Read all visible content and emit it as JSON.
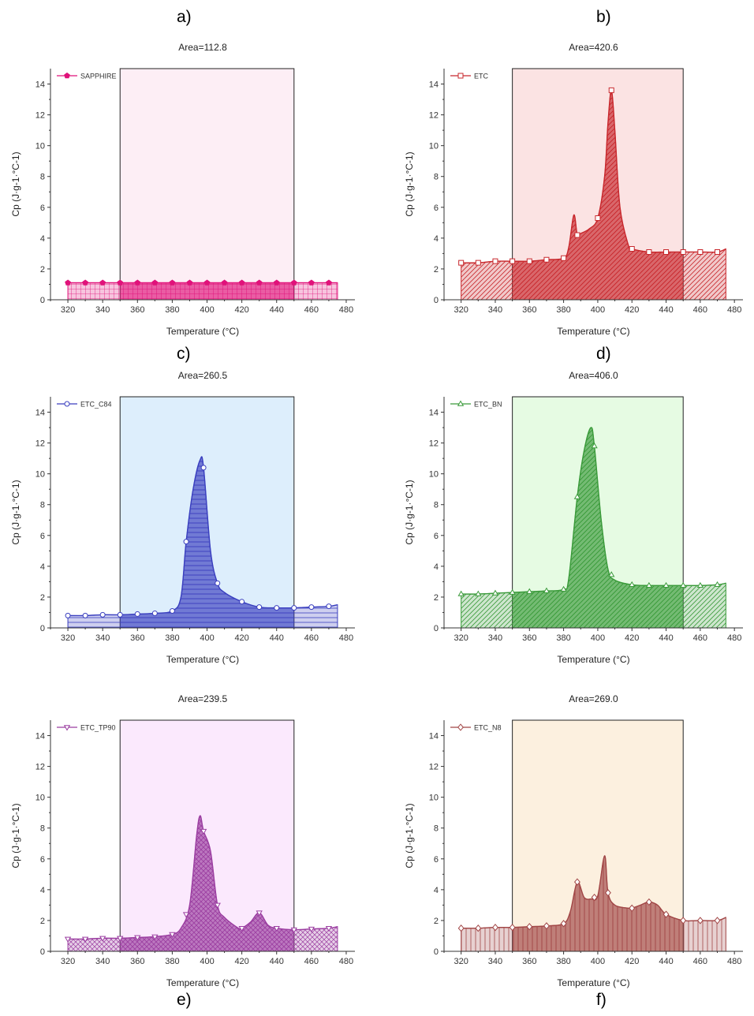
{
  "panel_letters": [
    "a)",
    "b)",
    "c)",
    "d)",
    "e)",
    "f)"
  ],
  "chart_data": [
    {
      "type": "area",
      "title": "Area=112.8",
      "xlabel": "Temperature (°C)",
      "ylabel": "Cp (J·g-1·°C-1)",
      "xlim": [
        310,
        485
      ],
      "ylim": [
        0,
        15
      ],
      "xticks": [
        320,
        340,
        360,
        380,
        400,
        420,
        440,
        460,
        480
      ],
      "yticks": [
        0,
        2,
        4,
        6,
        8,
        10,
        12,
        14
      ],
      "integration_range": [
        350,
        450
      ],
      "legend_position": "top-left",
      "marker": "pentagon",
      "color": "#e0127a",
      "shade": "#fdeef5",
      "series": [
        {
          "name": "SAPPHIRE",
          "x": [
            320,
            330,
            340,
            350,
            360,
            370,
            380,
            390,
            400,
            410,
            420,
            430,
            440,
            450,
            460,
            470,
            475
          ],
          "y": [
            1.1,
            1.1,
            1.1,
            1.1,
            1.1,
            1.1,
            1.1,
            1.1,
            1.1,
            1.1,
            1.1,
            1.1,
            1.1,
            1.1,
            1.1,
            1.1,
            1.1
          ],
          "marker_x": [
            320,
            330,
            340,
            350,
            360,
            370,
            380,
            390,
            400,
            410,
            420,
            430,
            440,
            450,
            460,
            470
          ]
        }
      ]
    },
    {
      "type": "area",
      "title": "Area=420.6",
      "xlabel": "Temperature (°C)",
      "ylabel": "Cp (J·g-1·°C-1)",
      "xlim": [
        310,
        485
      ],
      "ylim": [
        0,
        15
      ],
      "xticks": [
        320,
        340,
        360,
        380,
        400,
        420,
        440,
        460,
        480
      ],
      "yticks": [
        0,
        2,
        4,
        6,
        8,
        10,
        12,
        14
      ],
      "integration_range": [
        350,
        450
      ],
      "legend_position": "top-left",
      "marker": "square",
      "color": "#c8282d",
      "shade": "#fbe3e3",
      "series": [
        {
          "name": "ETC",
          "x": [
            320,
            330,
            340,
            350,
            360,
            370,
            380,
            383,
            386,
            388,
            390,
            395,
            400,
            404,
            406,
            408,
            410,
            413,
            418,
            420,
            430,
            440,
            450,
            460,
            470,
            475
          ],
          "y": [
            2.4,
            2.4,
            2.5,
            2.5,
            2.5,
            2.6,
            2.7,
            3.4,
            5.5,
            4.2,
            4.3,
            4.6,
            5.3,
            8.0,
            11.5,
            13.6,
            11.0,
            6.0,
            3.5,
            3.3,
            3.1,
            3.1,
            3.1,
            3.1,
            3.1,
            3.3
          ],
          "marker_x": [
            320,
            330,
            340,
            350,
            360,
            370,
            380,
            388,
            400,
            408,
            420,
            430,
            440,
            450,
            460,
            470
          ]
        }
      ]
    },
    {
      "type": "area",
      "title": "Area=260.5",
      "xlabel": "Temperature (°C)",
      "ylabel": "Cp (J·g-1·°C-1)",
      "xlim": [
        310,
        485
      ],
      "ylim": [
        0,
        15
      ],
      "xticks": [
        320,
        340,
        360,
        380,
        400,
        420,
        440,
        460,
        480
      ],
      "yticks": [
        0,
        2,
        4,
        6,
        8,
        10,
        12,
        14
      ],
      "integration_range": [
        350,
        450
      ],
      "legend_position": "top-left",
      "marker": "circle",
      "color": "#3a3fbf",
      "shade": "#ddeefc",
      "series": [
        {
          "name": "ETC_C84",
          "x": [
            320,
            330,
            340,
            350,
            360,
            370,
            380,
            385,
            388,
            392,
            396,
            398,
            402,
            406,
            410,
            420,
            430,
            440,
            450,
            460,
            470,
            475
          ],
          "y": [
            0.8,
            0.8,
            0.85,
            0.85,
            0.9,
            0.95,
            1.1,
            2.0,
            5.6,
            9.0,
            10.9,
            10.4,
            5.0,
            2.9,
            2.3,
            1.7,
            1.35,
            1.3,
            1.3,
            1.35,
            1.4,
            1.5
          ],
          "marker_x": [
            320,
            330,
            340,
            350,
            360,
            370,
            380,
            388,
            398,
            406,
            420,
            430,
            440,
            450,
            460,
            470
          ]
        }
      ]
    },
    {
      "type": "area",
      "title": "Area=406.0",
      "xlabel": "Temperature (°C)",
      "ylabel": "Cp (J·g-1·°C-1)",
      "xlim": [
        310,
        485
      ],
      "ylim": [
        0,
        15
      ],
      "xticks": [
        320,
        340,
        360,
        380,
        400,
        420,
        440,
        460,
        480
      ],
      "yticks": [
        0,
        2,
        4,
        6,
        8,
        10,
        12,
        14
      ],
      "integration_range": [
        350,
        450
      ],
      "legend_position": "top-left",
      "marker": "triangle",
      "color": "#3a9a3a",
      "shade": "#e6fbe3",
      "series": [
        {
          "name": "ETC_BN",
          "x": [
            320,
            330,
            340,
            350,
            360,
            370,
            380,
            383,
            388,
            392,
            396,
            398,
            402,
            406,
            410,
            420,
            430,
            440,
            450,
            460,
            470,
            475
          ],
          "y": [
            2.2,
            2.2,
            2.25,
            2.3,
            2.35,
            2.4,
            2.5,
            3.2,
            8.5,
            11.5,
            13.0,
            11.8,
            7.0,
            3.8,
            3.1,
            2.8,
            2.75,
            2.75,
            2.75,
            2.75,
            2.8,
            2.9
          ],
          "marker_x": [
            320,
            330,
            340,
            350,
            360,
            370,
            380,
            388,
            398,
            408,
            420,
            430,
            440,
            450,
            460,
            470
          ]
        }
      ]
    },
    {
      "type": "area",
      "title": "Area=239.5",
      "xlabel": "Temperature (°C)",
      "ylabel": "Cp (J·g-1·°C-1)",
      "xlim": [
        310,
        485
      ],
      "ylim": [
        0,
        15
      ],
      "xticks": [
        320,
        340,
        360,
        380,
        400,
        420,
        440,
        460,
        480
      ],
      "yticks": [
        0,
        2,
        4,
        6,
        8,
        10,
        12,
        14
      ],
      "integration_range": [
        350,
        450
      ],
      "legend_position": "top-left",
      "marker": "triangle-down",
      "color": "#9b3ea1",
      "shade": "#fbe9fd",
      "series": [
        {
          "name": "ETC_TP90",
          "x": [
            320,
            330,
            340,
            350,
            360,
            370,
            380,
            385,
            390,
            394,
            396,
            398,
            402,
            406,
            410,
            418,
            420,
            425,
            430,
            435,
            440,
            450,
            460,
            470,
            475
          ],
          "y": [
            0.8,
            0.8,
            0.85,
            0.85,
            0.9,
            0.95,
            1.1,
            1.5,
            3.0,
            7.5,
            8.8,
            7.8,
            6.5,
            3.0,
            2.2,
            1.5,
            1.5,
            1.9,
            2.5,
            1.7,
            1.5,
            1.4,
            1.45,
            1.5,
            1.6
          ],
          "marker_x": [
            320,
            330,
            340,
            350,
            360,
            370,
            380,
            388,
            398,
            406,
            420,
            430,
            440,
            450,
            460,
            470
          ]
        }
      ]
    },
    {
      "type": "area",
      "title": "Area=269.0",
      "xlabel": "Temperature (°C)",
      "ylabel": "Cp (J·g-1·°C-1)",
      "xlim": [
        310,
        485
      ],
      "ylim": [
        0,
        15
      ],
      "xticks": [
        320,
        340,
        360,
        380,
        400,
        420,
        440,
        460,
        480
      ],
      "yticks": [
        0,
        2,
        4,
        6,
        8,
        10,
        12,
        14
      ],
      "integration_range": [
        350,
        450
      ],
      "legend_position": "top-left",
      "marker": "diamond",
      "color": "#a14646",
      "shade": "#fcf0df",
      "series": [
        {
          "name": "ETC_N8",
          "x": [
            320,
            330,
            340,
            350,
            360,
            370,
            380,
            384,
            388,
            392,
            396,
            400,
            404,
            406,
            410,
            418,
            420,
            425,
            430,
            435,
            440,
            450,
            460,
            470,
            475
          ],
          "y": [
            1.5,
            1.5,
            1.55,
            1.55,
            1.6,
            1.65,
            1.8,
            2.6,
            4.5,
            3.5,
            3.4,
            3.6,
            6.2,
            3.8,
            3.0,
            2.8,
            2.8,
            3.0,
            3.2,
            3.0,
            2.4,
            2.0,
            2.0,
            2.0,
            2.2
          ],
          "marker_x": [
            320,
            330,
            340,
            350,
            360,
            370,
            380,
            388,
            398,
            406,
            420,
            430,
            440,
            450,
            460,
            470
          ]
        }
      ]
    }
  ]
}
